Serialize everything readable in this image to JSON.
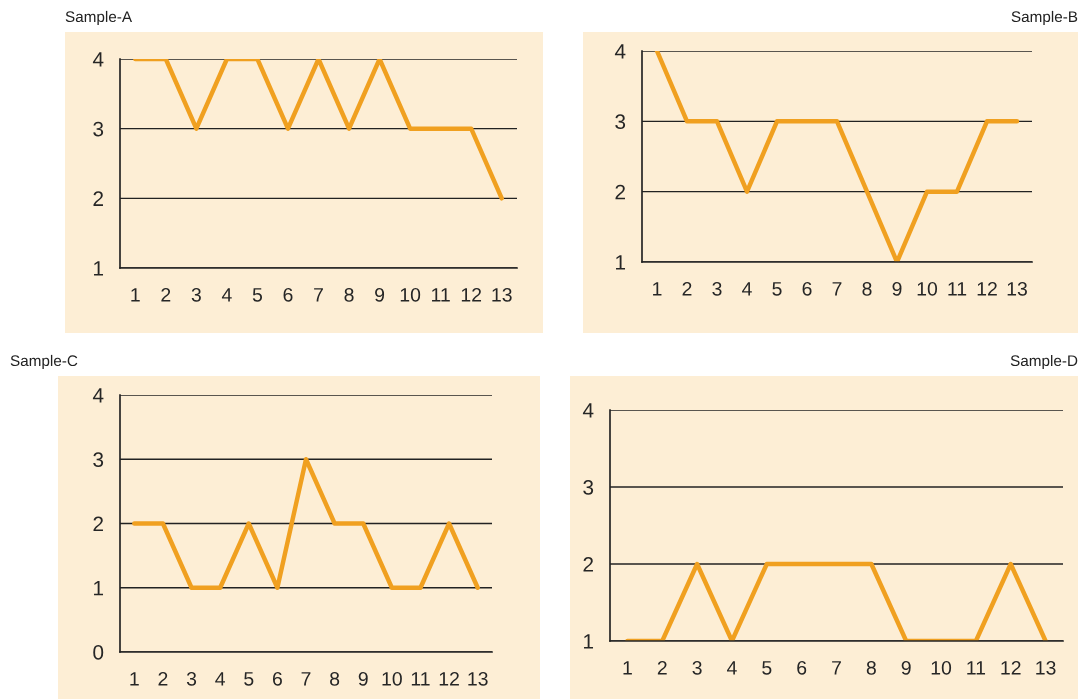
{
  "chart_data": [
    {
      "type": "line",
      "title": "Sample-A",
      "categories": [
        "1",
        "2",
        "3",
        "4",
        "5",
        "6",
        "7",
        "8",
        "9",
        "10",
        "11",
        "12",
        "13"
      ],
      "series": [
        {
          "color": "#f0a020",
          "values": [
            4,
            4,
            3,
            4,
            4,
            3,
            4,
            3,
            4,
            3,
            3,
            3,
            2
          ]
        }
      ],
      "ylim": [
        1,
        4
      ],
      "yticks": [
        1,
        2,
        3,
        4
      ],
      "grid": "y",
      "line_style": "solid"
    },
    {
      "type": "line",
      "title": "Sample-B",
      "categories": [
        "1",
        "2",
        "3",
        "4",
        "5",
        "6",
        "7",
        "8",
        "9",
        "10",
        "11",
        "12",
        "13"
      ],
      "series": [
        {
          "color": "#f0a020",
          "values": [
            4,
            3,
            3,
            2,
            3,
            3,
            3,
            2,
            1,
            2,
            2,
            3,
            3
          ]
        }
      ],
      "ylim": [
        1,
        4
      ],
      "yticks": [
        1,
        2,
        3,
        4
      ],
      "grid": "y",
      "line_style": "solid"
    },
    {
      "type": "line",
      "title": "Sample-C",
      "categories": [
        "1",
        "2",
        "3",
        "4",
        "5",
        "6",
        "7",
        "8",
        "9",
        "10",
        "11",
        "12",
        "13"
      ],
      "series": [
        {
          "color": "#f0a020",
          "values": [
            2,
            2,
            1,
            1,
            2,
            1,
            3,
            2,
            2,
            1,
            1,
            2,
            1
          ]
        }
      ],
      "ylim": [
        0,
        4
      ],
      "yticks": [
        0,
        1,
        2,
        3,
        4
      ],
      "grid": "y",
      "line_style": "solid"
    },
    {
      "type": "line",
      "title": "Sample-D",
      "categories": [
        "1",
        "2",
        "3",
        "4",
        "5",
        "6",
        "7",
        "8",
        "9",
        "10",
        "11",
        "12",
        "13"
      ],
      "series": [
        {
          "color": "#f0a020",
          "values": [
            1,
            1,
            2,
            1,
            2,
            2,
            2,
            2,
            1,
            1,
            1,
            2,
            1
          ]
        }
      ],
      "ylim": [
        1,
        4
      ],
      "yticks": [
        1,
        2,
        3,
        4
      ],
      "grid": "y",
      "line_style": "solid"
    }
  ]
}
